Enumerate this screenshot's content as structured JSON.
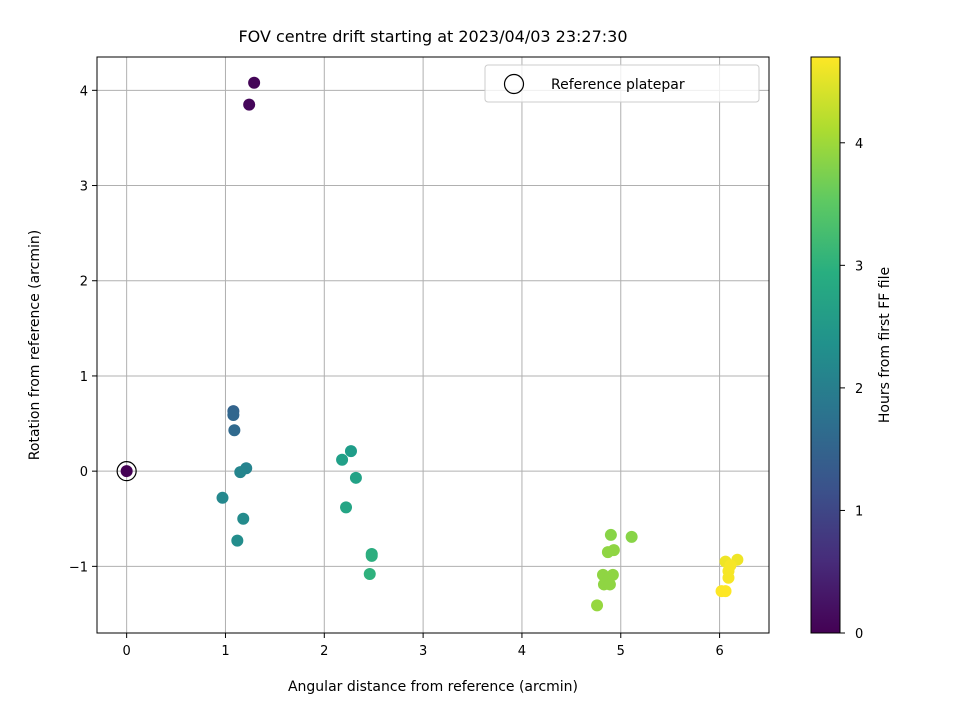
{
  "chart_data": {
    "type": "scatter",
    "title": "FOV centre drift starting at 2023/04/03 23:27:30",
    "xlabel": "Angular distance from reference (arcmin)",
    "ylabel": "Rotation from reference (arcmin)",
    "xlim": [
      -0.3,
      6.5
    ],
    "ylim": [
      -1.7,
      4.35
    ],
    "xticks": [
      0,
      1,
      2,
      3,
      4,
      5,
      6
    ],
    "yticks": [
      -1,
      0,
      1,
      2,
      3,
      4
    ],
    "xtick_labels": [
      "0",
      "1",
      "2",
      "3",
      "4",
      "5",
      "6"
    ],
    "ytick_labels": [
      "−1",
      "0",
      "1",
      "2",
      "3",
      "4"
    ],
    "grid": true,
    "legend": {
      "entries": [
        "Reference platepar"
      ],
      "placement": "top-right"
    },
    "colorbar": {
      "label": "Hours from first FF file",
      "range": [
        0,
        4.7
      ],
      "ticks": [
        0,
        1,
        2,
        3,
        4
      ],
      "tick_labels": [
        "0",
        "1",
        "2",
        "3",
        "4"
      ],
      "colormap": "viridis"
    },
    "reference_point": {
      "x": 0,
      "y": 0
    },
    "points": [
      {
        "x": 0.0,
        "y": 0.0,
        "c": 0.0
      },
      {
        "x": 1.29,
        "y": 4.08,
        "c": 0.05
      },
      {
        "x": 1.24,
        "y": 3.85,
        "c": 0.08
      },
      {
        "x": 1.08,
        "y": 0.63,
        "c": 1.5
      },
      {
        "x": 1.08,
        "y": 0.59,
        "c": 1.55
      },
      {
        "x": 1.09,
        "y": 0.43,
        "c": 1.6
      },
      {
        "x": 1.21,
        "y": 0.03,
        "c": 2.1
      },
      {
        "x": 1.15,
        "y": -0.01,
        "c": 2.15
      },
      {
        "x": 0.97,
        "y": -0.28,
        "c": 2.2
      },
      {
        "x": 1.18,
        "y": -0.5,
        "c": 2.25
      },
      {
        "x": 1.12,
        "y": -0.73,
        "c": 2.3
      },
      {
        "x": 2.27,
        "y": 0.21,
        "c": 2.6
      },
      {
        "x": 2.18,
        "y": 0.12,
        "c": 2.65
      },
      {
        "x": 2.32,
        "y": -0.07,
        "c": 2.7
      },
      {
        "x": 2.22,
        "y": -0.38,
        "c": 2.75
      },
      {
        "x": 2.48,
        "y": -0.87,
        "c": 2.9
      },
      {
        "x": 2.48,
        "y": -0.89,
        "c": 2.95
      },
      {
        "x": 2.46,
        "y": -1.08,
        "c": 3.0
      },
      {
        "x": 4.9,
        "y": -0.67,
        "c": 3.85
      },
      {
        "x": 5.11,
        "y": -0.69,
        "c": 3.85
      },
      {
        "x": 4.93,
        "y": -0.83,
        "c": 3.9
      },
      {
        "x": 4.87,
        "y": -0.85,
        "c": 3.9
      },
      {
        "x": 4.82,
        "y": -1.09,
        "c": 3.9
      },
      {
        "x": 4.92,
        "y": -1.09,
        "c": 3.9
      },
      {
        "x": 4.88,
        "y": -1.12,
        "c": 3.9
      },
      {
        "x": 4.83,
        "y": -1.19,
        "c": 3.9
      },
      {
        "x": 4.89,
        "y": -1.19,
        "c": 3.9
      },
      {
        "x": 4.76,
        "y": -1.41,
        "c": 3.95
      },
      {
        "x": 6.06,
        "y": -0.95,
        "c": 4.6
      },
      {
        "x": 6.18,
        "y": -0.93,
        "c": 4.6
      },
      {
        "x": 6.11,
        "y": -0.99,
        "c": 4.65
      },
      {
        "x": 6.09,
        "y": -1.05,
        "c": 4.65
      },
      {
        "x": 6.09,
        "y": -1.12,
        "c": 4.65
      },
      {
        "x": 6.02,
        "y": -1.26,
        "c": 4.7
      },
      {
        "x": 6.06,
        "y": -1.26,
        "c": 4.7
      }
    ]
  }
}
